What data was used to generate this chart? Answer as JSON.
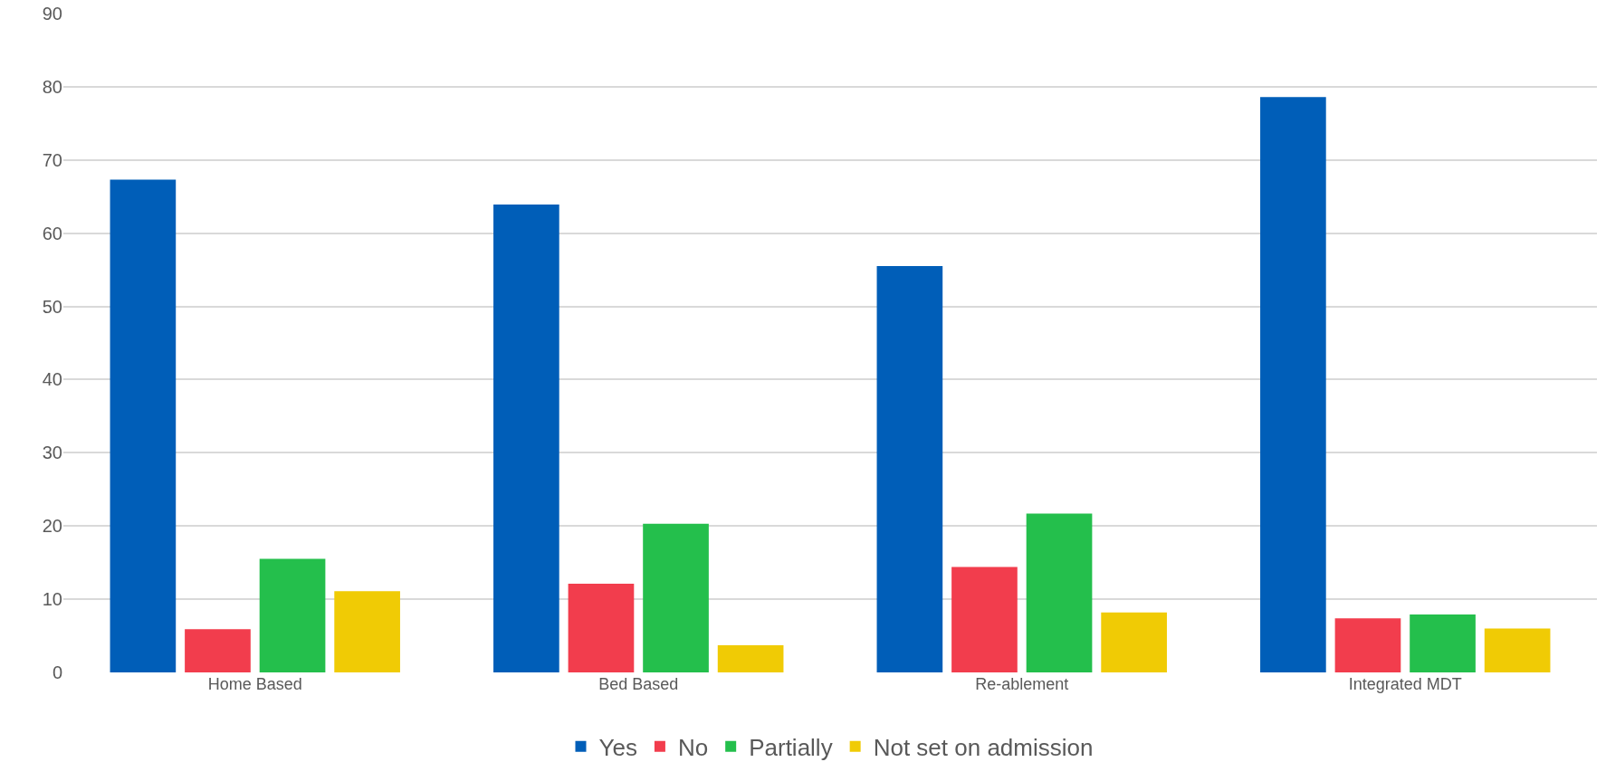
{
  "chart_data": {
    "type": "bar",
    "categories": [
      "Home Based",
      "Bed Based",
      "Re-ablement",
      "Integrated MDT"
    ],
    "series": [
      {
        "name": "Yes",
        "color": "#005eb8",
        "values": [
          67.3,
          63.9,
          55.5,
          78.6
        ]
      },
      {
        "name": "No",
        "color": "#f23d4d",
        "values": [
          5.9,
          12.1,
          14.4,
          7.4
        ]
      },
      {
        "name": "Partially",
        "color": "#24bf4c",
        "values": [
          15.5,
          20.3,
          21.7,
          7.9
        ]
      },
      {
        "name": "Not set on admission",
        "color": "#f0cb05",
        "values": [
          11.1,
          3.7,
          8.2,
          6.0
        ]
      }
    ],
    "ylim": [
      0,
      90
    ],
    "yticks": [
      0,
      10,
      20,
      30,
      40,
      50,
      60,
      70,
      80,
      90
    ],
    "grid": "y",
    "legend": "bottom"
  }
}
